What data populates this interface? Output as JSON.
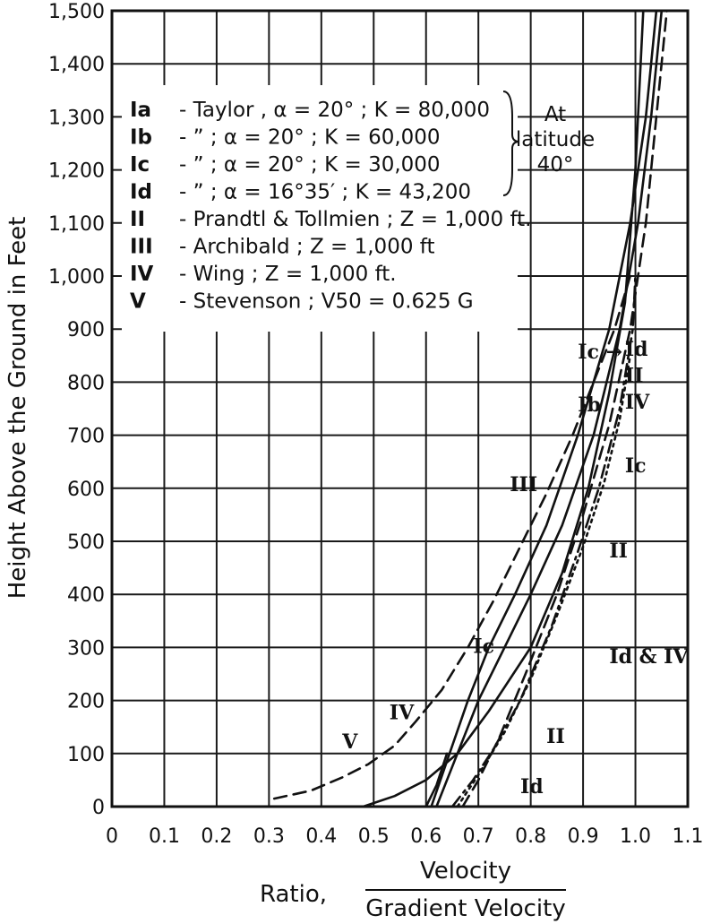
{
  "chart_data": {
    "type": "line",
    "xlabel_prefix": "Ratio,",
    "xlabel_numerator": "Velocity",
    "xlabel_denominator": "Gradient Velocity",
    "ylabel": "Height Above the Ground in Feet",
    "xlim": [
      0,
      1.1
    ],
    "ylim": [
      0,
      1500
    ],
    "grid": true,
    "x_ticks": [
      "0",
      "0.1",
      "0.2",
      "0.3",
      "0.4",
      "0.5",
      "0.6",
      "0.7",
      "0.8",
      "0.9",
      "1.0",
      "1.1"
    ],
    "y_ticks": [
      "0",
      "100",
      "200",
      "300",
      "400",
      "500",
      "600",
      "700",
      "800",
      "900",
      "1,000",
      "1,100",
      "1,200",
      "1,300",
      "1,400",
      "1,500"
    ],
    "legend": [
      {
        "sym": "Ia",
        "text": "- Taylor , α = 20° ; K = 80,000"
      },
      {
        "sym": "Ib",
        "text": "- ” ; α = 20° ; K = 60,000"
      },
      {
        "sym": "Ic",
        "text": "- ” ; α = 20° ; K = 30,000"
      },
      {
        "sym": "Id",
        "text": "- ” ; α = 16°35′ ; K = 43,200"
      },
      {
        "sym": "II",
        "text": "- Prandtl & Tollmien ; Z = 1,000 ft."
      },
      {
        "sym": "III",
        "text": "- Archibald ; Z = 1,000 ft"
      },
      {
        "sym": "IV",
        "text": "- Wing ; Z = 1,000 ft."
      },
      {
        "sym": "V",
        "text": "- Stevenson ; V50 = 0.625 G"
      }
    ],
    "legend_note": "At latitude 40°",
    "annotations": [
      {
        "text": "Ic →",
        "x": 0.89,
        "y": 845
      },
      {
        "text": "Ib",
        "x": 0.89,
        "y": 745
      },
      {
        "text": "Id",
        "x": 0.98,
        "y": 850
      },
      {
        "text": "II",
        "x": 0.98,
        "y": 800
      },
      {
        "text": "IV",
        "x": 0.98,
        "y": 750
      },
      {
        "text": "Ic",
        "x": 0.98,
        "y": 630
      },
      {
        "text": "III",
        "x": 0.76,
        "y": 595
      },
      {
        "text": "II",
        "x": 0.95,
        "y": 470
      },
      {
        "text": "Ic",
        "x": 0.69,
        "y": 290
      },
      {
        "text": "Id & IV",
        "x": 0.95,
        "y": 270
      },
      {
        "text": "IV",
        "x": 0.53,
        "y": 165
      },
      {
        "text": "V",
        "x": 0.44,
        "y": 110
      },
      {
        "text": "II",
        "x": 0.83,
        "y": 120
      },
      {
        "text": "Id",
        "x": 0.78,
        "y": 25
      }
    ],
    "series": [
      {
        "style": "solid",
        "x": [
          0.61,
          0.645,
          0.68,
          0.72,
          0.77,
          0.83,
          0.89,
          0.95,
          0.99,
          1.02,
          1.04
        ],
        "y": [
          0,
          100,
          200,
          300,
          400,
          530,
          700,
          900,
          1100,
          1300,
          1500
        ]
      },
      {
        "style": "solid",
        "x": [
          0.62,
          0.66,
          0.7,
          0.75,
          0.8,
          0.86,
          0.92,
          0.97,
          1.005,
          1.03,
          1.05
        ],
        "y": [
          0,
          100,
          200,
          300,
          400,
          530,
          700,
          900,
          1100,
          1300,
          1500
        ]
      },
      {
        "style": "solid",
        "x": [
          0.48,
          0.54,
          0.6,
          0.66,
          0.72,
          0.8,
          0.86,
          0.91,
          0.95,
          0.98,
          1.0,
          1.015
        ],
        "y": [
          0,
          20,
          50,
          100,
          180,
          300,
          440,
          600,
          780,
          950,
          1200,
          1500
        ]
      },
      {
        "style": "dashed",
        "x": [
          0.31,
          0.38,
          0.44,
          0.49,
          0.54,
          0.58,
          0.63,
          0.68,
          0.73,
          0.78,
          0.83,
          0.88,
          0.92,
          0.96,
          0.99
        ],
        "y": [
          15,
          30,
          55,
          80,
          115,
          160,
          220,
          300,
          390,
          490,
          590,
          700,
          800,
          900,
          1000
        ]
      },
      {
        "style": "dashed",
        "x": [
          0.67,
          0.7,
          0.74,
          0.79,
          0.85,
          0.9,
          0.95,
          0.99,
          1.02,
          1.04,
          1.06
        ],
        "y": [
          0,
          50,
          130,
          250,
          400,
          550,
          720,
          900,
          1100,
          1300,
          1500
        ]
      },
      {
        "style": "dashdot",
        "x": [
          0.65,
          0.69,
          0.73,
          0.78,
          0.84,
          0.89,
          0.93,
          0.97,
          0.995,
          1.0
        ],
        "y": [
          0,
          50,
          110,
          200,
          340,
          480,
          600,
          750,
          900,
          1000
        ]
      },
      {
        "style": "dotted",
        "x": [
          0.66,
          0.7,
          0.75,
          0.8,
          0.85,
          0.9,
          0.94,
          0.97,
          0.99
        ],
        "y": [
          0,
          60,
          140,
          240,
          360,
          490,
          610,
          730,
          850
        ]
      },
      {
        "style": "solid",
        "x": [
          0.6,
          0.62,
          0.64
        ],
        "y": [
          0,
          40,
          100
        ]
      }
    ]
  }
}
